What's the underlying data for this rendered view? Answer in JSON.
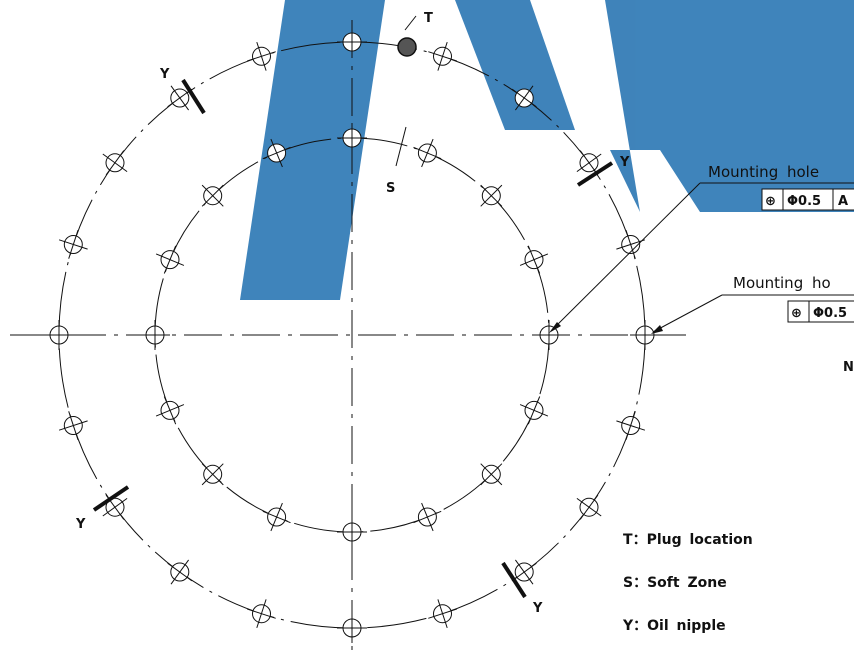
{
  "colors": {
    "watermark": "#2f79b5",
    "line": "#111111",
    "background": "#ffffff"
  },
  "markers": {
    "plug": "T",
    "soft_zone": "S",
    "oil_nipple": "Y",
    "partial_right": "N"
  },
  "callouts": {
    "inner_label": "Mounting hole",
    "outer_label": "Mounting ho",
    "inner_tolerance": "Φ0.5",
    "inner_datum": "A",
    "outer_tolerance": "Φ0.5",
    "position_symbol": "⊕"
  },
  "legend": [
    {
      "key": "T",
      "sep": "：",
      "text": "Plug location"
    },
    {
      "key": "S",
      "sep": "：",
      "text": "Soft Zone"
    },
    {
      "key": "Y",
      "sep": "：",
      "text": "Oil nipple"
    }
  ]
}
